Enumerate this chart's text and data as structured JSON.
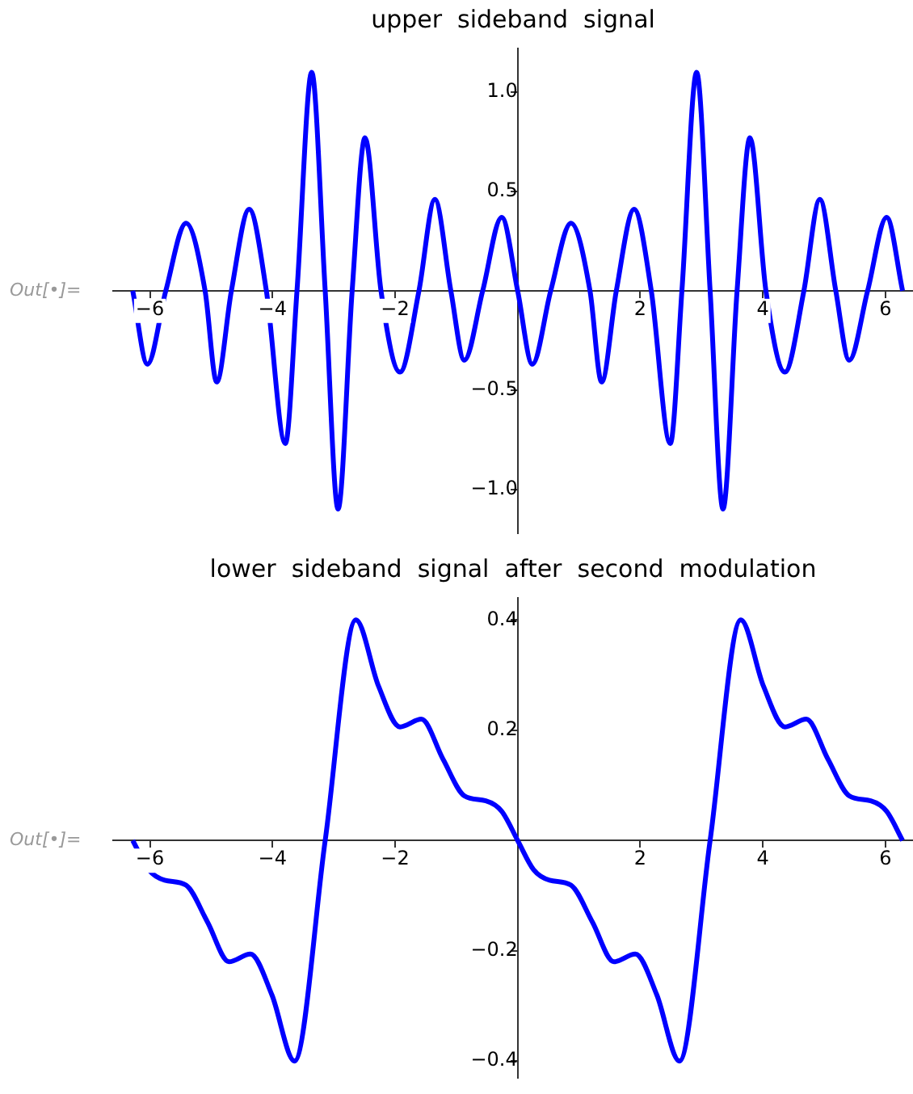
{
  "chart_data": [
    {
      "type": "line",
      "title": "upper  sideband  signal",
      "marker": "none",
      "annotations": [
        "Out[•]="
      ],
      "xlim": [
        -6.6,
        6.45
      ],
      "ylim": [
        -1.22,
        1.22
      ],
      "xticks": [
        {
          "value": -6,
          "label": "−6"
        },
        {
          "value": -4,
          "label": "−4"
        },
        {
          "value": -2,
          "label": "−2"
        },
        2,
        4,
        6
      ],
      "yticks": [
        {
          "value": -1,
          "label": "−1.0"
        },
        {
          "value": -0.5,
          "label": "−0.5"
        },
        0.5,
        {
          "value": 1,
          "label": "1.0"
        }
      ],
      "series": [
        {
          "color": "#0000ff",
          "x": [
            -6.28,
            -6.04,
            -5.74,
            -5.41,
            -5.1,
            -4.91,
            -4.67,
            -4.38,
            -4.1,
            -3.79,
            -3.6,
            -3.36,
            -3.14,
            -2.93,
            -2.7,
            -2.49,
            -2.23,
            -1.92,
            -1.61,
            -1.35,
            -1.09,
            -0.87,
            -0.57,
            -0.26,
            0,
            0.24,
            0.54,
            0.87,
            1.18,
            1.37,
            1.61,
            1.9,
            2.18,
            2.49,
            2.68,
            2.92,
            3.14,
            3.35,
            3.58,
            3.79,
            4.05,
            4.36,
            4.67,
            4.93,
            5.19,
            5.41,
            5.71,
            6.02,
            6.28
          ],
          "values": [
            0,
            -0.37,
            0,
            0.34,
            0,
            -0.46,
            0,
            0.41,
            0,
            -0.77,
            0,
            1.1,
            0,
            -1.1,
            0,
            0.77,
            0,
            -0.41,
            0,
            0.46,
            0,
            -0.35,
            0,
            0.37,
            0,
            -0.37,
            0,
            0.34,
            0,
            -0.46,
            0,
            0.41,
            0,
            -0.77,
            0,
            1.1,
            0,
            -1.1,
            0,
            0.77,
            0,
            -0.41,
            0,
            0.46,
            0,
            -0.35,
            0,
            0.37,
            0
          ]
        }
      ]
    },
    {
      "type": "line",
      "title": "lower  sideband  signal  after  second  modulation",
      "marker": "none",
      "annotations": [
        "Out[•]="
      ],
      "xlim": [
        -6.6,
        6.45
      ],
      "ylim": [
        -0.43,
        0.44
      ],
      "xticks": [
        {
          "value": -6,
          "label": "−6"
        },
        {
          "value": -4,
          "label": "−4"
        },
        {
          "value": -2,
          "label": "−2"
        },
        2,
        4,
        6
      ],
      "yticks": [
        {
          "value": -0.4,
          "label": "−0.4"
        },
        {
          "value": -0.2,
          "label": "−0.2"
        },
        0.2,
        0.4
      ],
      "series": [
        {
          "color": "#0000ff",
          "x": [
            -6.28,
            -6.02,
            -5.76,
            -5.41,
            -5.06,
            -4.71,
            -4.36,
            -4.01,
            -3.64,
            -3.14,
            -2.64,
            -2.27,
            -1.92,
            -1.57,
            -1.22,
            -0.87,
            -0.52,
            -0.26,
            0,
            0.26,
            0.52,
            0.87,
            1.22,
            1.57,
            1.92,
            2.27,
            2.64,
            3.14,
            3.64,
            4.01,
            4.36,
            4.71,
            5.06,
            5.41,
            5.76,
            6.02,
            6.28
          ],
          "values": [
            0,
            -0.053,
            -0.072,
            -0.081,
            -0.148,
            -0.22,
            -0.206,
            -0.28,
            -0.4,
            0,
            0.4,
            0.28,
            0.206,
            0.22,
            0.148,
            0.081,
            0.072,
            0.053,
            0,
            -0.053,
            -0.072,
            -0.081,
            -0.148,
            -0.22,
            -0.206,
            -0.28,
            -0.4,
            0,
            0.4,
            0.28,
            0.206,
            0.22,
            0.148,
            0.081,
            0.072,
            0.053,
            0
          ]
        }
      ]
    }
  ]
}
